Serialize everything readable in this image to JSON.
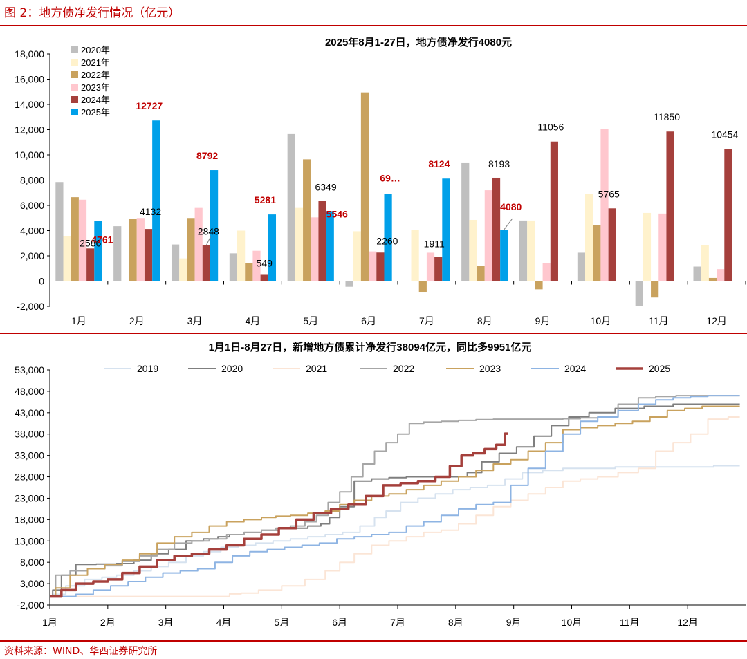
{
  "figure_title": "图 2：地方债净发行情况（亿元）",
  "source": "资料来源：WIND、华西证券研究所",
  "chart_data": [
    {
      "type": "bar",
      "title": "2025年8月1-27日，地方债净发行4080元",
      "categories": [
        "1月",
        "2月",
        "3月",
        "4月",
        "5月",
        "6月",
        "7月",
        "8月",
        "9月",
        "10月",
        "11月",
        "12月"
      ],
      "ylim": [
        -2000,
        18000
      ],
      "yticks": [
        -2000,
        0,
        2000,
        4000,
        6000,
        8000,
        10000,
        12000,
        14000,
        16000,
        18000
      ],
      "ytick_labels": [
        "-2,000",
        "0",
        "2,000",
        "4,000",
        "6,000",
        "8,000",
        "10,000",
        "12,000",
        "14,000",
        "16,000",
        "18,000"
      ],
      "legend_position": "top-left",
      "series": [
        {
          "name": "2020年",
          "color": "#bfbfbf",
          "values": [
            7850,
            4350,
            2900,
            2200,
            11650,
            -450,
            0,
            9400,
            4800,
            2250,
            -1950,
            1150
          ]
        },
        {
          "name": "2021年",
          "color": "#fff2cc",
          "values": [
            3550,
            0,
            1800,
            4000,
            5800,
            3950,
            4050,
            4850,
            4800,
            6900,
            5400,
            2850
          ]
        },
        {
          "name": "2022年",
          "color": "#c9a25e",
          "values": [
            6650,
            4950,
            5000,
            1450,
            9650,
            14950,
            -850,
            1200,
            -650,
            4450,
            -1300,
            250
          ]
        },
        {
          "name": "2023年",
          "color": "#ffc7ce",
          "values": [
            6450,
            5000,
            5800,
            2400,
            5050,
            2350,
            2250,
            7200,
            1450,
            12050,
            5350,
            950
          ]
        },
        {
          "name": "2024年",
          "color": "#a5403c",
          "values": [
            2586,
            4132,
            2848,
            549,
            6349,
            2260,
            1911,
            8193,
            11056,
            5765,
            11850,
            10454
          ]
        },
        {
          "name": "2025年",
          "color": "#00a0e9",
          "values": [
            4761,
            12727,
            8792,
            5281,
            5546,
            6900,
            8124,
            4080,
            null,
            null,
            null,
            null
          ]
        }
      ],
      "data_labels": {
        "2024年": [
          "2586",
          "4132",
          "2848",
          "549",
          "6349",
          "2260",
          "1911",
          "8193",
          "11056",
          "5765",
          "11850",
          "10454"
        ],
        "2025年": [
          "4761",
          "12727",
          "8792",
          "5281",
          "5546",
          "69…",
          "8124",
          "4080"
        ]
      },
      "label_colors": {
        "2024年": "#000000",
        "2025年": "#c00000"
      }
    },
    {
      "type": "line",
      "title": "1月1日-8月27日，新增地方债累计净发行38094亿元，同比多9951亿元",
      "x_ticks": [
        "1月",
        "2月",
        "3月",
        "4月",
        "5月",
        "6月",
        "7月",
        "8月",
        "9月",
        "10月",
        "11月",
        "12月"
      ],
      "ylim": [
        -2000,
        53000
      ],
      "yticks": [
        -2000,
        3000,
        8000,
        13000,
        18000,
        23000,
        28000,
        33000,
        38000,
        43000,
        48000,
        53000
      ],
      "ytick_labels": [
        "-2,000",
        "3,000",
        "8,000",
        "13,000",
        "18,000",
        "23,000",
        "28,000",
        "33,000",
        "38,000",
        "43,000",
        "48,000",
        "53,000"
      ],
      "legend_position": "top",
      "series": [
        {
          "name": "2019",
          "color": "#d6e2ef",
          "width": 2,
          "x": [
            1.0,
            1.15,
            1.4,
            1.8,
            2.0,
            2.3,
            2.6,
            2.9,
            3.2,
            3.5,
            3.8,
            4.1,
            4.4,
            4.7,
            5.0,
            5.3,
            5.6,
            5.9,
            6.2,
            6.5,
            6.7,
            6.9,
            7.2,
            7.5,
            7.8,
            8.1,
            8.4,
            8.7,
            9.0,
            9.3,
            9.7,
            10.0,
            10.5,
            11.0,
            11.5,
            12.0,
            12.9
          ],
          "y": [
            0,
            500,
            2500,
            4000,
            4500,
            5000,
            6000,
            7000,
            8000,
            9500,
            10500,
            11500,
            12000,
            12500,
            13000,
            13500,
            14000,
            14500,
            15000,
            16500,
            18500,
            20000,
            22000,
            23000,
            24000,
            25000,
            25500,
            26000,
            27500,
            29000,
            29500,
            30000,
            30000,
            30300,
            30300,
            30300,
            30600
          ]
        },
        {
          "name": "2020",
          "color": "#7f7f7f",
          "width": 2,
          "x": [
            1.0,
            1.1,
            1.3,
            1.6,
            2.0,
            2.3,
            2.6,
            2.9,
            3.2,
            3.5,
            3.8,
            4.0,
            4.2,
            4.5,
            4.8,
            5.1,
            5.3,
            5.6,
            5.75,
            5.9,
            6.1,
            6.4,
            6.7,
            7.0,
            7.3,
            7.6,
            7.9,
            8.1,
            8.3,
            8.6,
            8.9,
            9.2,
            9.5,
            9.8,
            10.1,
            10.5,
            11.0,
            11.5,
            12.0,
            12.9
          ],
          "y": [
            0,
            1500,
            5000,
            7500,
            7600,
            7700,
            8500,
            10000,
            11000,
            13000,
            13500,
            14000,
            14500,
            15000,
            15500,
            16000,
            16000,
            16500,
            17000,
            18500,
            21000,
            27000,
            27500,
            27800,
            28000,
            28000,
            28000,
            28000,
            29000,
            31500,
            33500,
            35000,
            37500,
            40000,
            42000,
            43000,
            44000,
            44500,
            45000,
            45000
          ]
        },
        {
          "name": "2021",
          "color": "#fbe5d6",
          "width": 2,
          "x": [
            1.0,
            1.5,
            2.0,
            2.5,
            3.0,
            3.5,
            4.0,
            4.2,
            4.4,
            4.8,
            5.2,
            5.6,
            5.9,
            6.1,
            6.4,
            6.7,
            7.0,
            7.3,
            7.6,
            7.9,
            8.2,
            8.5,
            8.8,
            9.1,
            9.4,
            9.7,
            10.0,
            10.3,
            10.6,
            11.0,
            11.3,
            11.6,
            11.9,
            12.2,
            12.5,
            12.9
          ],
          "y": [
            0,
            0,
            0,
            0,
            0,
            0,
            0,
            600,
            800,
            1500,
            2500,
            4000,
            6000,
            8000,
            10000,
            12000,
            13000,
            14000,
            15000,
            15500,
            17000,
            19000,
            21000,
            22500,
            24000,
            25500,
            27000,
            27500,
            28000,
            29000,
            30000,
            34000,
            36000,
            38000,
            41500,
            42000
          ]
        },
        {
          "name": "2022",
          "color": "#a6a6a6",
          "width": 2,
          "x": [
            1.0,
            1.2,
            1.5,
            1.8,
            2.1,
            2.4,
            2.7,
            3.0,
            3.3,
            3.6,
            3.9,
            4.2,
            4.5,
            4.8,
            5.0,
            5.3,
            5.5,
            5.7,
            5.9,
            6.1,
            6.3,
            6.5,
            6.7,
            6.9,
            7.1,
            7.3,
            7.6,
            7.9,
            8.2,
            8.5,
            8.8,
            9.1,
            9.4,
            9.7,
            10.0,
            10.3,
            10.6,
            11.0,
            11.3,
            11.6,
            12.0,
            12.9
          ],
          "y": [
            0,
            5000,
            6000,
            6500,
            7200,
            8200,
            9500,
            11000,
            12500,
            13000,
            13500,
            14500,
            15000,
            15500,
            16000,
            16500,
            17500,
            19000,
            22000,
            24500,
            28000,
            31000,
            34000,
            36000,
            38000,
            40500,
            40800,
            41000,
            41200,
            41400,
            41500,
            41500,
            41500,
            41500,
            41600,
            41800,
            42000,
            45000,
            46500,
            46800,
            47000,
            47000
          ]
        },
        {
          "name": "2023",
          "color": "#c9a25e",
          "width": 2,
          "x": [
            1.0,
            1.2,
            1.5,
            1.8,
            2.1,
            2.4,
            2.7,
            3.0,
            3.3,
            3.6,
            3.9,
            4.2,
            4.5,
            4.8,
            5.0,
            5.3,
            5.6,
            5.9,
            6.1,
            6.4,
            6.7,
            7.0,
            7.3,
            7.6,
            7.9,
            8.2,
            8.5,
            8.8,
            9.1,
            9.4,
            9.7,
            10.0,
            10.3,
            10.6,
            10.9,
            11.2,
            11.5,
            11.8,
            12.1,
            12.4,
            12.9
          ],
          "y": [
            0,
            2000,
            5000,
            6500,
            7500,
            8500,
            10000,
            12500,
            14000,
            15000,
            16500,
            17500,
            18000,
            18500,
            18800,
            19000,
            19500,
            20000,
            21500,
            22500,
            23500,
            24000,
            25000,
            26000,
            27000,
            28000,
            29500,
            31000,
            32000,
            34000,
            36000,
            39000,
            39500,
            40000,
            40500,
            41000,
            42000,
            43500,
            44000,
            44500,
            44500
          ]
        },
        {
          "name": "2024",
          "color": "#8eb4e3",
          "width": 2,
          "x": [
            1.0,
            1.3,
            1.6,
            1.9,
            2.2,
            2.5,
            2.8,
            3.1,
            3.4,
            3.7,
            4.0,
            4.3,
            4.6,
            4.9,
            5.2,
            5.5,
            5.8,
            6.1,
            6.4,
            6.7,
            7.0,
            7.3,
            7.6,
            7.9,
            8.2,
            8.5,
            8.8,
            9.1,
            9.4,
            9.7,
            10.0,
            10.3,
            10.6,
            11.0,
            11.3,
            11.6,
            11.9,
            12.2,
            12.5,
            12.9
          ],
          "y": [
            0,
            0,
            500,
            1500,
            2500,
            3500,
            4500,
            5500,
            6000,
            6500,
            8000,
            9500,
            10500,
            11000,
            11500,
            12000,
            12500,
            13500,
            14000,
            14500,
            15000,
            16500,
            17500,
            19000,
            20500,
            21500,
            22000,
            26000,
            30000,
            34000,
            38000,
            41000,
            42000,
            43500,
            45000,
            46000,
            46500,
            46800,
            47000,
            47000
          ]
        },
        {
          "name": "2025",
          "color": "#a5403c",
          "width": 3.5,
          "x": [
            1.0,
            1.1,
            1.3,
            1.6,
            1.9,
            2.1,
            2.4,
            2.7,
            3.0,
            3.3,
            3.6,
            3.9,
            4.2,
            4.5,
            4.8,
            5.1,
            5.4,
            5.7,
            6.0,
            6.3,
            6.6,
            6.9,
            7.2,
            7.5,
            7.8,
            8.0,
            8.2,
            8.4,
            8.6,
            8.8,
            8.9
          ],
          "y": [
            0,
            0,
            1500,
            3000,
            3500,
            4000,
            5500,
            7000,
            8500,
            9500,
            10000,
            11000,
            12000,
            13500,
            14500,
            16000,
            18000,
            19500,
            20500,
            21500,
            23500,
            26000,
            26500,
            27000,
            28000,
            30500,
            33000,
            33500,
            34500,
            35500,
            38094
          ]
        }
      ]
    }
  ]
}
